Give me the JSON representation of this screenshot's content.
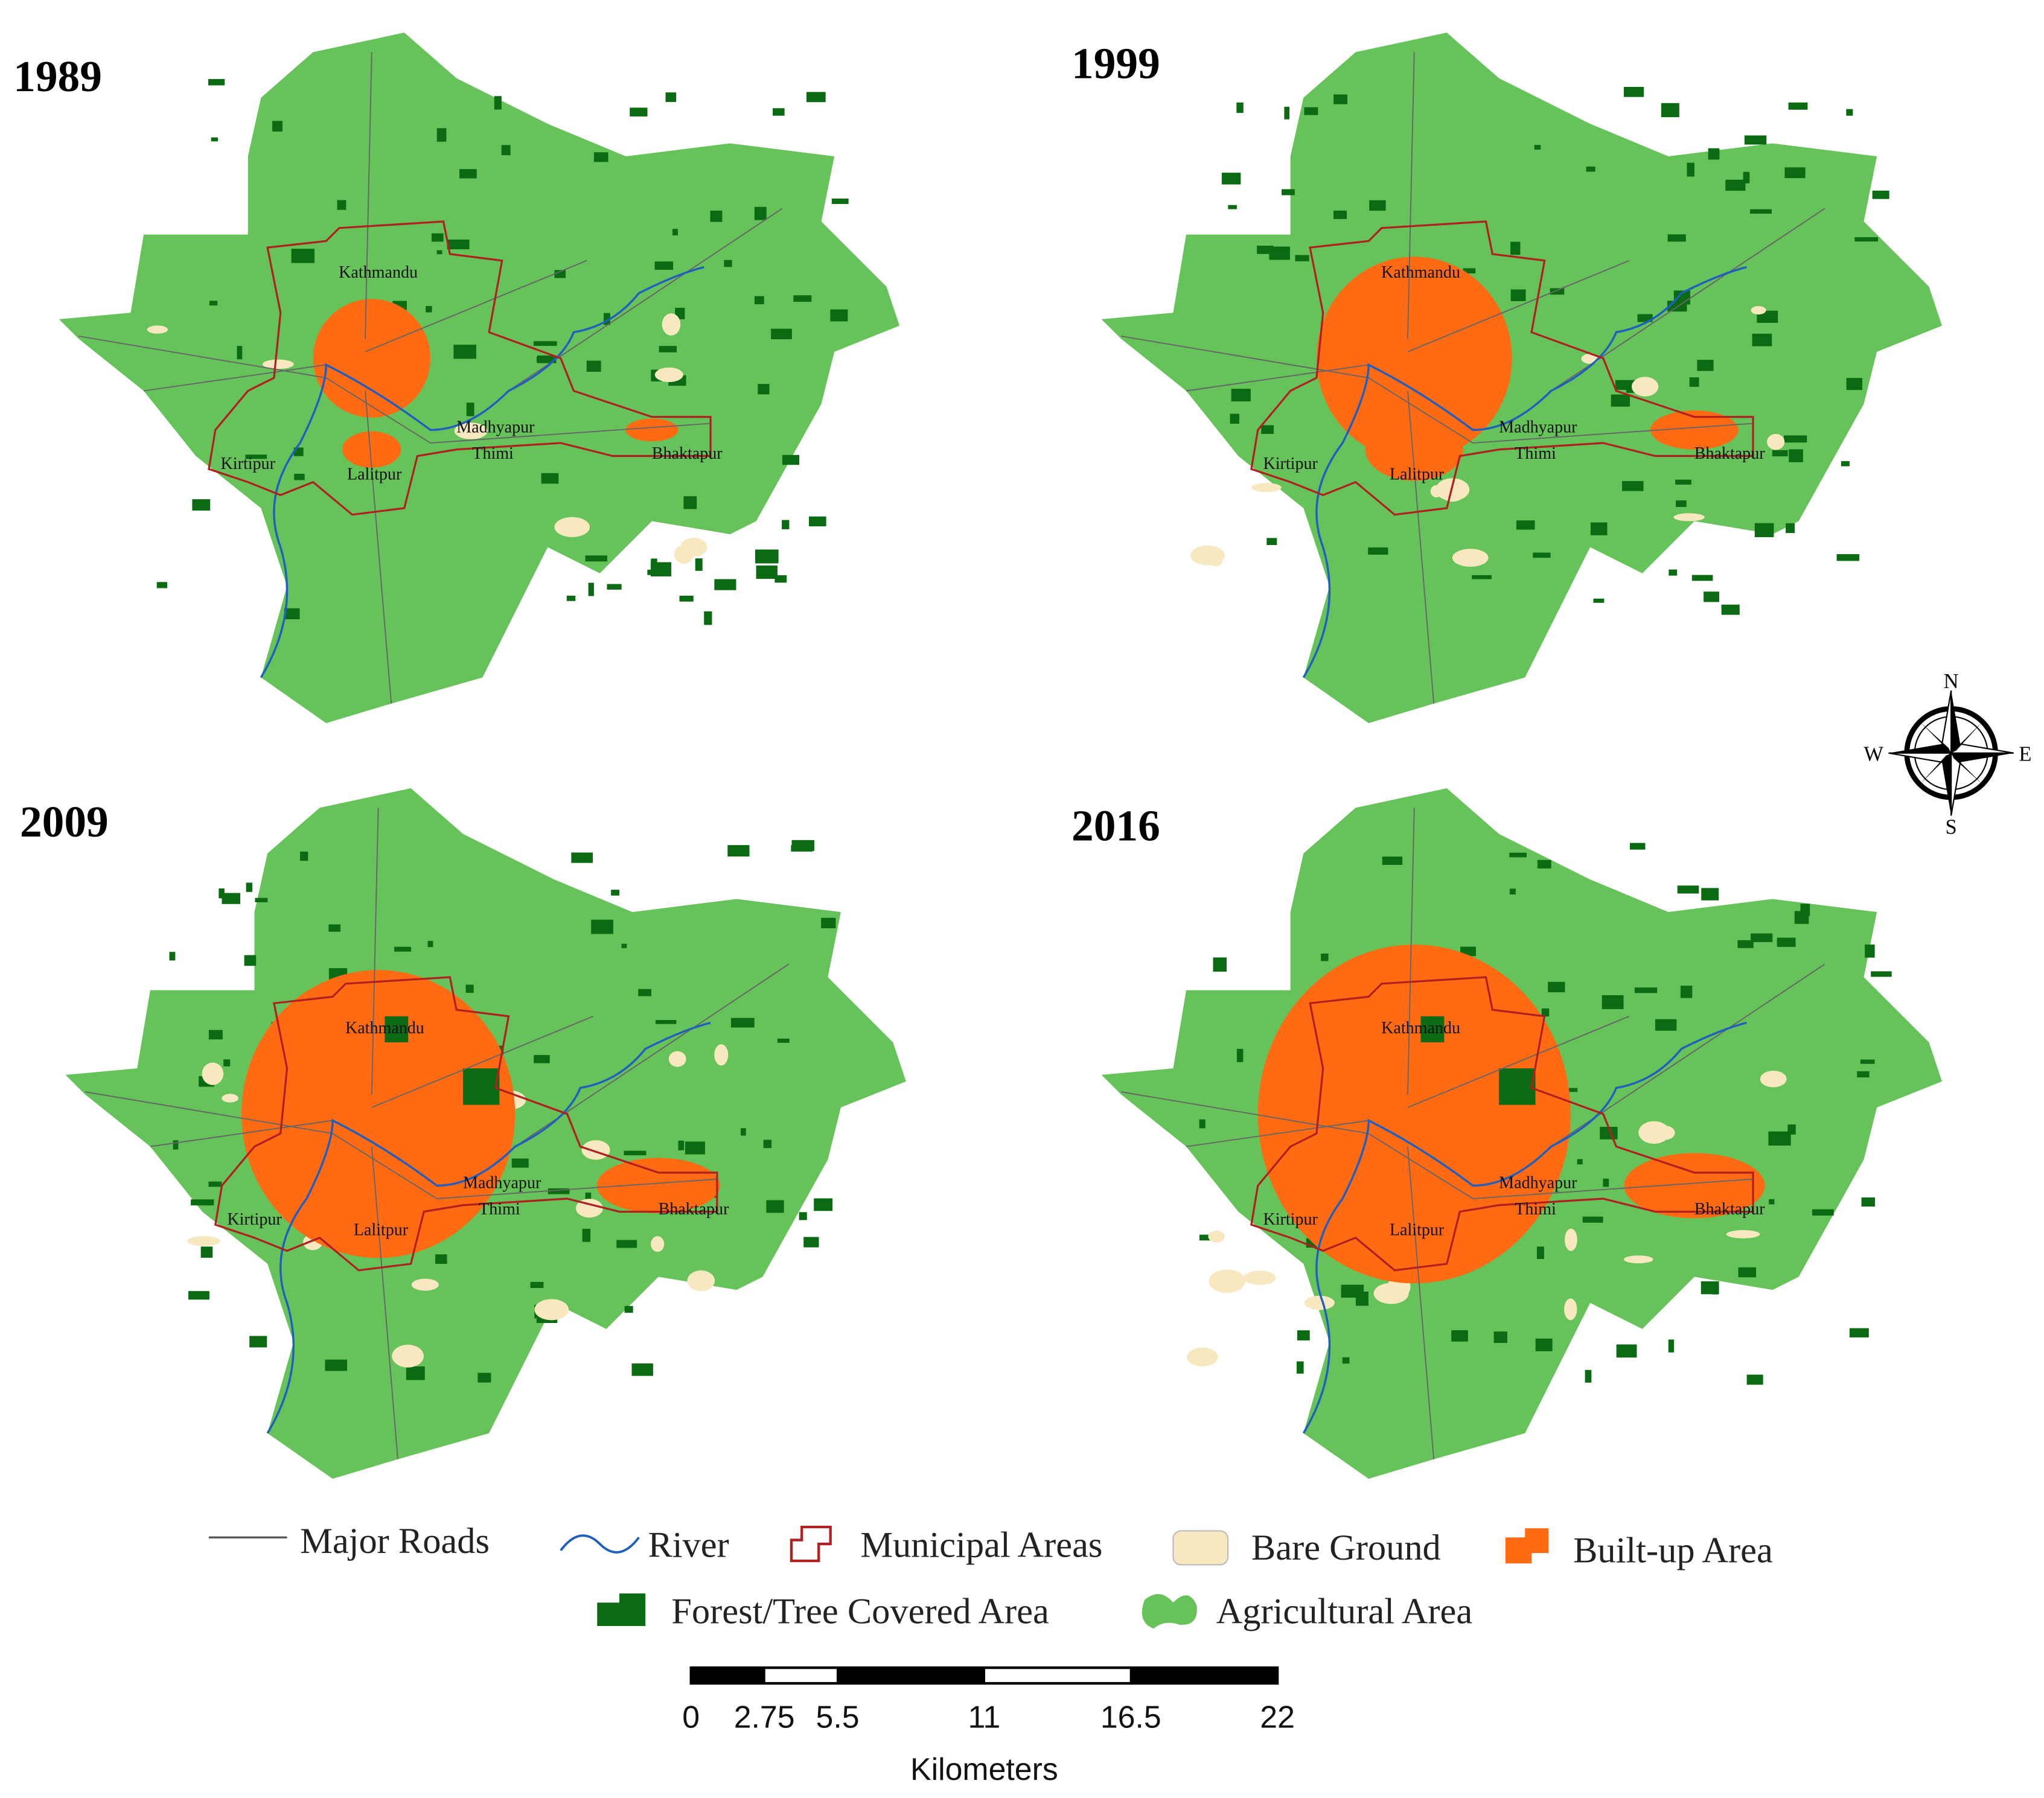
{
  "panels": [
    {
      "year": "1989",
      "places": [
        "Kathmandu",
        "Kirtipur",
        "Lalitpur",
        "Madhyapur",
        "Thimi",
        "Bhaktapur"
      ]
    },
    {
      "year": "1999",
      "places": [
        "Kathmandu",
        "Kirtipur",
        "Lalitpur",
        "Madhyapur",
        "Thimi",
        "Bhaktapur"
      ]
    },
    {
      "year": "2009",
      "places": [
        "Kathmandu",
        "Kirtipur",
        "Lalitpur",
        "Madhyapur",
        "Thimi",
        "Bhaktapur"
      ]
    },
    {
      "year": "2016",
      "places": [
        "Kathmandu",
        "Kirtipur",
        "Lalitpur",
        "Madhyapur",
        "Thimi",
        "Bhaktapur"
      ]
    }
  ],
  "compass": {
    "n": "N",
    "s": "S",
    "w": "W",
    "e": "E"
  },
  "legend": {
    "roads": "Major Roads",
    "river": "River",
    "municipal": "Municipal Areas",
    "bare": "Bare Ground",
    "builtup": "Built-up Area",
    "forest": "Forest/Tree Covered Area",
    "agri": "Agricultural Area"
  },
  "scale_bar": {
    "ticks": [
      0,
      2.75,
      5.5,
      11,
      16.5,
      22
    ],
    "unit": "Kilometers"
  }
}
